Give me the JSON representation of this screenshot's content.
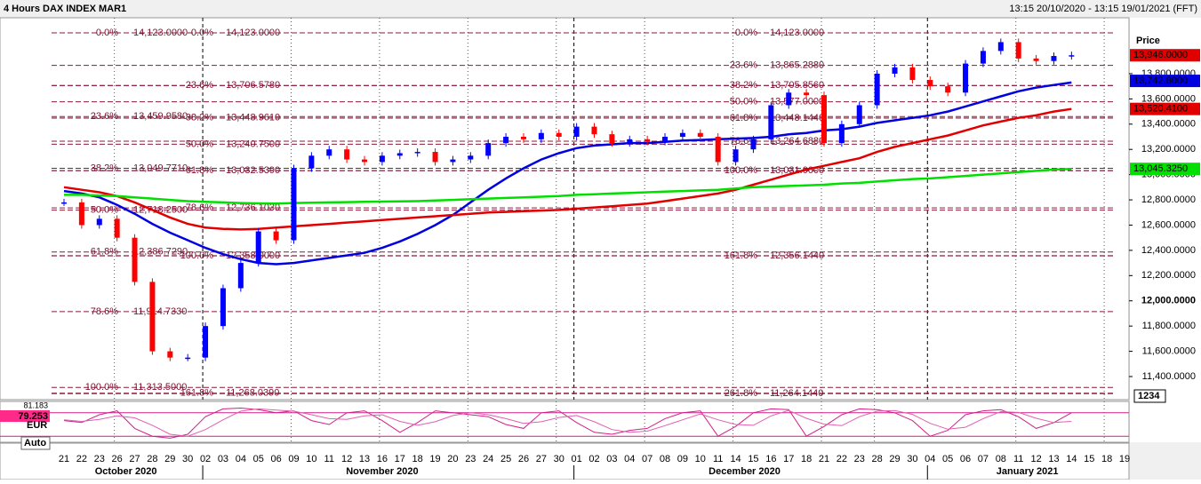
{
  "chart_data": {
    "type": "candlestick",
    "title": "4 Hours DAX INDEX MAR1",
    "subtitle": "13:15 20/10/2020 - 13:15 19/01/2021 (FFT)",
    "categories": [
      "21",
      "22",
      "23",
      "26",
      "27",
      "28",
      "29",
      "30",
      "02",
      "03",
      "04",
      "05",
      "06",
      "09",
      "10",
      "11",
      "12",
      "13",
      "16",
      "17",
      "18",
      "19",
      "20",
      "23",
      "24",
      "25",
      "26",
      "27",
      "30",
      "01",
      "02",
      "03",
      "04",
      "07",
      "08",
      "09",
      "10",
      "11",
      "14",
      "15",
      "16",
      "17",
      "18",
      "21",
      "22",
      "23",
      "28",
      "29",
      "30",
      "04",
      "05",
      "06",
      "07",
      "08",
      "11",
      "12",
      "13",
      "14",
      "15",
      "18",
      "19"
    ],
    "months": [
      "October 2020",
      "November 2020",
      "December 2020",
      "January 2021"
    ],
    "close": [
      12780,
      12600,
      12650,
      12500,
      12150,
      11600,
      11550,
      11550,
      11800,
      12100,
      12300,
      12550,
      12480,
      13050,
      13150,
      13200,
      13120,
      13100,
      13150,
      13170,
      13180,
      13100,
      13120,
      13150,
      13250,
      13300,
      13280,
      13330,
      13300,
      13380,
      13320,
      13250,
      13280,
      13260,
      13300,
      13330,
      13300,
      13100,
      13200,
      13280,
      13550,
      13650,
      13630,
      13250,
      13400,
      13550,
      13800,
      13850,
      13750,
      13700,
      13650,
      13880,
      13980,
      14050,
      13920,
      13900,
      13940,
      13946,
      null,
      null,
      null
    ],
    "up_color": "#0000ff",
    "down_color": "#ff0000",
    "lines": [
      {
        "color": "#0000e0",
        "values": [
          12870,
          12850,
          12820,
          12760,
          12690,
          12610,
          12540,
          12480,
          12420,
          12370,
          12330,
          12300,
          12290,
          12300,
          12320,
          12340,
          12360,
          12380,
          12420,
          12470,
          12530,
          12600,
          12680,
          12780,
          12880,
          12970,
          13050,
          13120,
          13170,
          13210,
          13230,
          13240,
          13250,
          13250,
          13260,
          13270,
          13275,
          13280,
          13285,
          13290,
          13300,
          13320,
          13330,
          13350,
          13360,
          13380,
          13410,
          13430,
          13450,
          13470,
          13500,
          13540,
          13580,
          13620,
          13660,
          13690,
          13710,
          13730,
          null,
          null,
          null
        ]
      },
      {
        "color": "#e00000",
        "values": [
          12900,
          12880,
          12860,
          12830,
          12780,
          12720,
          12660,
          12610,
          12580,
          12570,
          12565,
          12570,
          12580,
          12590,
          12600,
          12610,
          12620,
          12630,
          12640,
          12650,
          12660,
          12670,
          12680,
          12690,
          12700,
          12705,
          12710,
          12715,
          12720,
          12730,
          12740,
          12750,
          12760,
          12770,
          12790,
          12810,
          12830,
          12850,
          12880,
          12920,
          12960,
          13000,
          13040,
          13070,
          13100,
          13130,
          13180,
          13220,
          13250,
          13280,
          13310,
          13350,
          13390,
          13420,
          13450,
          13470,
          13500,
          13520,
          null,
          null,
          null
        ]
      },
      {
        "color": "#00e000",
        "values": [
          12840,
          12840,
          12835,
          12830,
          12820,
          12810,
          12800,
          12790,
          12785,
          12780,
          12775,
          12772,
          12770,
          12775,
          12778,
          12780,
          12782,
          12784,
          12786,
          12788,
          12790,
          12795,
          12800,
          12805,
          12810,
          12815,
          12820,
          12825,
          12830,
          12840,
          12845,
          12850,
          12855,
          12860,
          12865,
          12870,
          12875,
          12880,
          12890,
          12900,
          12905,
          12910,
          12915,
          12920,
          12930,
          12935,
          12945,
          12955,
          12965,
          12970,
          12980,
          12990,
          13000,
          13010,
          13020,
          13030,
          13040,
          13045,
          null,
          null,
          null
        ]
      }
    ],
    "ylim": [
      11217,
      14243
    ],
    "y_axis_label": "Price",
    "yticks": [
      {
        "value": 11400,
        "label": "11,400.0000"
      },
      {
        "value": 11600,
        "label": "11,600.0000"
      },
      {
        "value": 11800,
        "label": "11,800.0000"
      },
      {
        "value": 12000,
        "label": "12,000.0000"
      },
      {
        "value": 12200,
        "label": "12,200.0000"
      },
      {
        "value": 12400,
        "label": "12,400.0000"
      },
      {
        "value": 12600,
        "label": "12,600.0000"
      },
      {
        "value": 12800,
        "label": "12,800.0000"
      },
      {
        "value": 13000,
        "label": "13,000.0000"
      },
      {
        "value": 13200,
        "label": "13,200.0000"
      },
      {
        "value": 13400,
        "label": "13,400.0000"
      },
      {
        "value": 13600,
        "label": "13,600.0000"
      },
      {
        "value": 13800,
        "label": "13,800.0000"
      }
    ],
    "badges": [
      {
        "value": 13946,
        "label": "13,946.0000",
        "color": "#e00000"
      },
      {
        "value": 13742.8,
        "label": "13,742.8000",
        "color": "#0000e0"
      },
      {
        "value": 13520.41,
        "label": "13,520.4100",
        "color": "#e00000"
      },
      {
        "value": 13045.325,
        "label": "13,045.3250",
        "color": "#00e000"
      }
    ],
    "corner_label": "1234",
    "fib_groups": [
      {
        "levels": [
          {
            "pct": "0.0%",
            "value": 14123,
            "label": "14,123.0000"
          },
          {
            "pct": "23.6%",
            "value": 13459.958,
            "label": "13,459.9580"
          },
          {
            "pct": "38.2%",
            "value": 13049.771,
            "label": "13,049.7710"
          },
          {
            "pct": "50.0%",
            "value": 12718.25,
            "label": "12,718.2500"
          },
          {
            "pct": "61.8%",
            "value": 12386.729,
            "label": "12,386.7290"
          },
          {
            "pct": "78.6%",
            "value": 11914.733,
            "label": "11,914.7330"
          },
          {
            "pct": "100.0%",
            "value": 11313.5,
            "label": "11,313.5000"
          }
        ]
      },
      {
        "levels": [
          {
            "pct": "0.0%",
            "value": 14123,
            "label": "14,123.0000"
          },
          {
            "pct": "23.6%",
            "value": 13706.578,
            "label": "13,706.5780"
          },
          {
            "pct": "38.2%",
            "value": 13448.961,
            "label": "13,448.9610"
          },
          {
            "pct": "50.0%",
            "value": 13240.75,
            "label": "13,240.7500"
          },
          {
            "pct": "61.8%",
            "value": 13032.539,
            "label": "13,032.5390"
          },
          {
            "pct": "78.6%",
            "value": 12736.103,
            "label": "12,736.1030"
          },
          {
            "pct": "100.0%",
            "value": 12358,
            "label": "12,358.0000"
          },
          {
            "pct": "161.8%",
            "value": 11268.039,
            "label": "11,268.0390"
          }
        ]
      },
      {
        "levels": [
          {
            "pct": "0.0%",
            "value": 14123,
            "label": "14,123.0000"
          },
          {
            "pct": "23.6%",
            "value": 13865.288,
            "label": "13,865.2880"
          },
          {
            "pct": "38.2%",
            "value": 13705.856,
            "label": "13,705.8560"
          },
          {
            "pct": "50.0%",
            "value": 13577,
            "label": "13,577.0000"
          },
          {
            "pct": "61.8%",
            "value": 13448.144,
            "label": "13,448.1440"
          },
          {
            "pct": "78.6%",
            "value": 13264.688,
            "label": "13,264.6880"
          },
          {
            "pct": "100.0%",
            "value": 13031,
            "label": "13,031.0000"
          },
          {
            "pct": "161.8%",
            "value": 12356.144,
            "label": "12,356.1440"
          },
          {
            "pct": "261.8%",
            "value": 11264.144,
            "label": "11,264.1440"
          }
        ]
      }
    ],
    "fib_color": "#8b1a3a",
    "indicator": {
      "ylim": [
        0,
        100
      ],
      "levels": [
        80,
        20
      ],
      "series": [
        {
          "color": "#d0208a",
          "values": [
            60,
            55,
            75,
            85,
            40,
            20,
            15,
            25,
            70,
            90,
            92,
            88,
            80,
            85,
            60,
            50,
            80,
            85,
            60,
            30,
            55,
            85,
            80,
            75,
            70,
            50,
            40,
            80,
            85,
            55,
            30,
            25,
            35,
            40,
            65,
            80,
            85,
            20,
            45,
            80,
            90,
            88,
            20,
            45,
            75,
            90,
            88,
            80,
            60,
            20,
            35,
            75,
            85,
            88,
            70,
            40,
            55,
            80,
            null,
            null,
            null
          ]
        },
        {
          "color": "#e060b0",
          "values": [
            62,
            58,
            63,
            72,
            67,
            48,
            25,
            20,
            37,
            62,
            84,
            90,
            87,
            84,
            75,
            65,
            63,
            72,
            75,
            58,
            48,
            57,
            73,
            80,
            75,
            65,
            53,
            57,
            68,
            73,
            57,
            37,
            30,
            33,
            47,
            62,
            77,
            62,
            50,
            48,
            72,
            86,
            66,
            51,
            47,
            70,
            84,
            86,
            76,
            53,
            38,
            43,
            65,
            83,
            81,
            66,
            55,
            58,
            null,
            null,
            null
          ]
        }
      ],
      "readouts": [
        81.183,
        79.253
      ],
      "readout_labels": [
        "81.183",
        "79.253"
      ],
      "currency": "EUR",
      "scale_mode": "Auto"
    }
  }
}
